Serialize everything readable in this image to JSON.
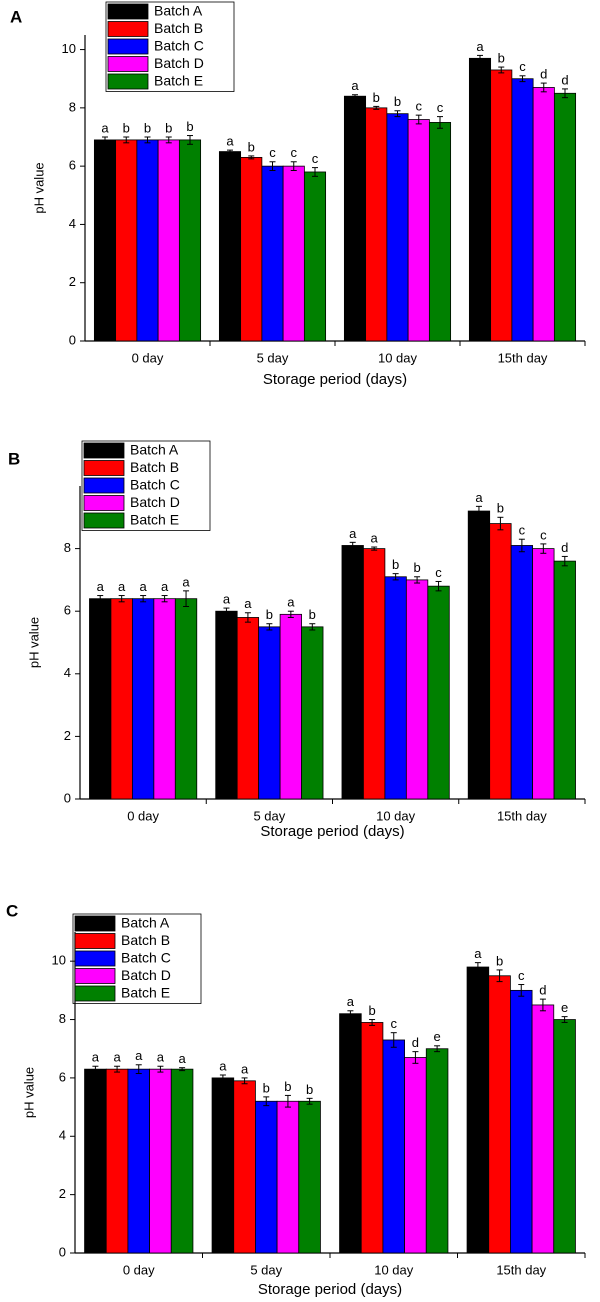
{
  "chart_data": [
    {
      "type": "bar",
      "title": "A",
      "x_label": "Storage period (days)",
      "y_label": "pH value",
      "categories": [
        "0 day",
        "5 day",
        "10 day",
        "15th day"
      ],
      "ylim": [
        0,
        10.5
      ],
      "yticks": [
        0,
        2,
        4,
        6,
        8,
        10
      ],
      "series": [
        {
          "name": "Batch A",
          "color": "#000000",
          "values": [
            6.9,
            6.5,
            8.4,
            9.7
          ],
          "errors": [
            0.1,
            0.05,
            0.05,
            0.1
          ],
          "letters": [
            "a",
            "a",
            "a",
            "a"
          ]
        },
        {
          "name": "Batch B",
          "color": "#ff0000",
          "values": [
            6.9,
            6.3,
            8.0,
            9.3
          ],
          "errors": [
            0.1,
            0.05,
            0.05,
            0.1
          ],
          "letters": [
            "b",
            "b",
            "b",
            "b"
          ]
        },
        {
          "name": "Batch C",
          "color": "#0000ff",
          "values": [
            6.9,
            6.0,
            7.8,
            9.0
          ],
          "errors": [
            0.1,
            0.15,
            0.1,
            0.1
          ],
          "letters": [
            "b",
            "c",
            "b",
            "c"
          ]
        },
        {
          "name": "Batch D",
          "color": "#ff00ff",
          "values": [
            6.9,
            6.0,
            7.6,
            8.7
          ],
          "errors": [
            0.1,
            0.15,
            0.15,
            0.15
          ],
          "letters": [
            "b",
            "c",
            "c",
            "d"
          ]
        },
        {
          "name": "Batch E",
          "color": "#008000",
          "values": [
            6.9,
            5.8,
            7.5,
            8.5
          ],
          "errors": [
            0.15,
            0.15,
            0.2,
            0.15
          ],
          "letters": [
            "b",
            "c",
            "c",
            "d"
          ]
        }
      ]
    },
    {
      "type": "bar",
      "title": "B",
      "x_label": "Storage period (days)",
      "y_label": "pH value",
      "categories": [
        "0 day",
        "5 day",
        "10 day",
        "15th day"
      ],
      "ylim": [
        0,
        10
      ],
      "yticks": [
        0,
        2,
        4,
        6,
        8
      ],
      "series": [
        {
          "name": "Batch A",
          "color": "#000000",
          "values": [
            6.4,
            6.0,
            8.1,
            9.2
          ],
          "errors": [
            0.1,
            0.1,
            0.1,
            0.15
          ],
          "letters": [
            "a",
            "a",
            "a",
            "a"
          ]
        },
        {
          "name": "Batch B",
          "color": "#ff0000",
          "values": [
            6.4,
            5.8,
            8.0,
            8.8
          ],
          "errors": [
            0.1,
            0.15,
            0.05,
            0.2
          ],
          "letters": [
            "a",
            "a",
            "a",
            "b"
          ]
        },
        {
          "name": "Batch C",
          "color": "#0000ff",
          "values": [
            6.4,
            5.5,
            7.1,
            8.1
          ],
          "errors": [
            0.1,
            0.1,
            0.1,
            0.2
          ],
          "letters": [
            "a",
            "b",
            "b",
            "c"
          ]
        },
        {
          "name": "Batch D",
          "color": "#ff00ff",
          "values": [
            6.4,
            5.9,
            7.0,
            8.0
          ],
          "errors": [
            0.1,
            0.1,
            0.1,
            0.15
          ],
          "letters": [
            "a",
            "a",
            "b",
            "c"
          ]
        },
        {
          "name": "Batch E",
          "color": "#008000",
          "values": [
            6.4,
            5.5,
            6.8,
            7.6
          ],
          "errors": [
            0.25,
            0.1,
            0.15,
            0.15
          ],
          "letters": [
            "a",
            "b",
            "c",
            "d"
          ]
        }
      ]
    },
    {
      "type": "bar",
      "title": "C",
      "x_label": "Storage period (days)",
      "y_label": "pH value",
      "categories": [
        "0 day",
        "5 day",
        "10 day",
        "15th day"
      ],
      "ylim": [
        0,
        11
      ],
      "yticks": [
        0,
        2,
        4,
        6,
        8,
        10
      ],
      "series": [
        {
          "name": "Batch A",
          "color": "#000000",
          "values": [
            6.3,
            6.0,
            8.2,
            9.8
          ],
          "errors": [
            0.1,
            0.1,
            0.1,
            0.15
          ],
          "letters": [
            "a",
            "a",
            "a",
            "a"
          ]
        },
        {
          "name": "Batch B",
          "color": "#ff0000",
          "values": [
            6.3,
            5.9,
            7.9,
            9.5
          ],
          "errors": [
            0.1,
            0.1,
            0.1,
            0.2
          ],
          "letters": [
            "a",
            "a",
            "b",
            "b"
          ]
        },
        {
          "name": "Batch C",
          "color": "#0000ff",
          "values": [
            6.3,
            5.2,
            7.3,
            9.0
          ],
          "errors": [
            0.15,
            0.15,
            0.25,
            0.2
          ],
          "letters": [
            "a",
            "b",
            "c",
            "c"
          ]
        },
        {
          "name": "Batch D",
          "color": "#ff00ff",
          "values": [
            6.3,
            5.2,
            6.7,
            8.5
          ],
          "errors": [
            0.1,
            0.2,
            0.2,
            0.2
          ],
          "letters": [
            "a",
            "b",
            "d",
            "d"
          ]
        },
        {
          "name": "Batch E",
          "color": "#008000",
          "values": [
            6.3,
            5.2,
            7.0,
            8.0
          ],
          "errors": [
            0.05,
            0.1,
            0.1,
            0.1
          ],
          "letters": [
            "a",
            "b",
            "e",
            "e"
          ]
        }
      ]
    }
  ]
}
